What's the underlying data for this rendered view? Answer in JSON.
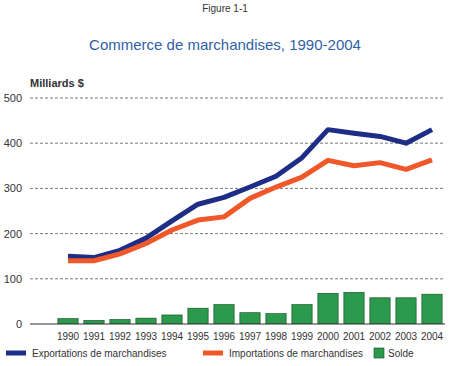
{
  "chart_data": {
    "type": "line",
    "annotations": [
      "Figure 1-1"
    ],
    "title": "Commerce de marchandises, 1990-2004",
    "y_label": "Milliards $",
    "categories": [
      "1990",
      "1991",
      "1992",
      "1993",
      "1994",
      "1995",
      "1996",
      "1997",
      "1998",
      "1999",
      "2000",
      "2001",
      "2002",
      "2003",
      "2004"
    ],
    "series": [
      {
        "name": "Exportations de marchandises",
        "type": "line",
        "color": "#1e2d86",
        "values": [
          150,
          147,
          163,
          190,
          228,
          265,
          280,
          303,
          327,
          368,
          430,
          422,
          415,
          400,
          430
        ]
      },
      {
        "name": "Importations de marchandises",
        "type": "line",
        "color": "#f0582a",
        "values": [
          140,
          140,
          155,
          178,
          208,
          230,
          237,
          278,
          303,
          325,
          362,
          350,
          357,
          342,
          363
        ]
      },
      {
        "name": "Solde",
        "type": "bar",
        "color": "#2b9a4c",
        "values": [
          12,
          8,
          10,
          13,
          20,
          35,
          43,
          25,
          23,
          43,
          68,
          70,
          58,
          58,
          66
        ]
      }
    ],
    "ylim": [
      0,
      500
    ],
    "yticks": [
      0,
      100,
      200,
      300,
      400,
      500
    ],
    "grid": true,
    "legend": "bottom"
  }
}
